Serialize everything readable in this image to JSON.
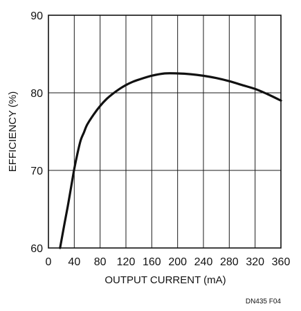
{
  "chart_data": {
    "type": "line",
    "title": "",
    "xlabel": "OUTPUT CURRENT (mA)",
    "ylabel": "EFFICIENCY (%)",
    "xlim": [
      0,
      360
    ],
    "ylim": [
      60,
      90
    ],
    "xticks": [
      0,
      40,
      80,
      120,
      160,
      200,
      240,
      280,
      320,
      360
    ],
    "yticks": [
      60,
      70,
      80,
      90
    ],
    "grid": true,
    "legend": "none",
    "series": [
      {
        "x": [
          18,
          25,
          30,
          35,
          40,
          45,
          50,
          55,
          60,
          70,
          80,
          90,
          100,
          110,
          120,
          130,
          140,
          160,
          180,
          200,
          220,
          240,
          260,
          280,
          300,
          320,
          340,
          360
        ],
        "y": [
          60,
          63.2,
          65.4,
          67.8,
          70.2,
          72.2,
          73.9,
          74.9,
          75.9,
          77.2,
          78.3,
          79.2,
          79.9,
          80.5,
          81.0,
          81.4,
          81.7,
          82.2,
          82.5,
          82.5,
          82.4,
          82.2,
          81.9,
          81.5,
          81.0,
          80.5,
          79.8,
          79.0
        ]
      }
    ],
    "colors": {
      "line": "#111111",
      "grid": "#1a1a1a",
      "frame": "#111111"
    }
  },
  "figure_id": "DN435 F04"
}
